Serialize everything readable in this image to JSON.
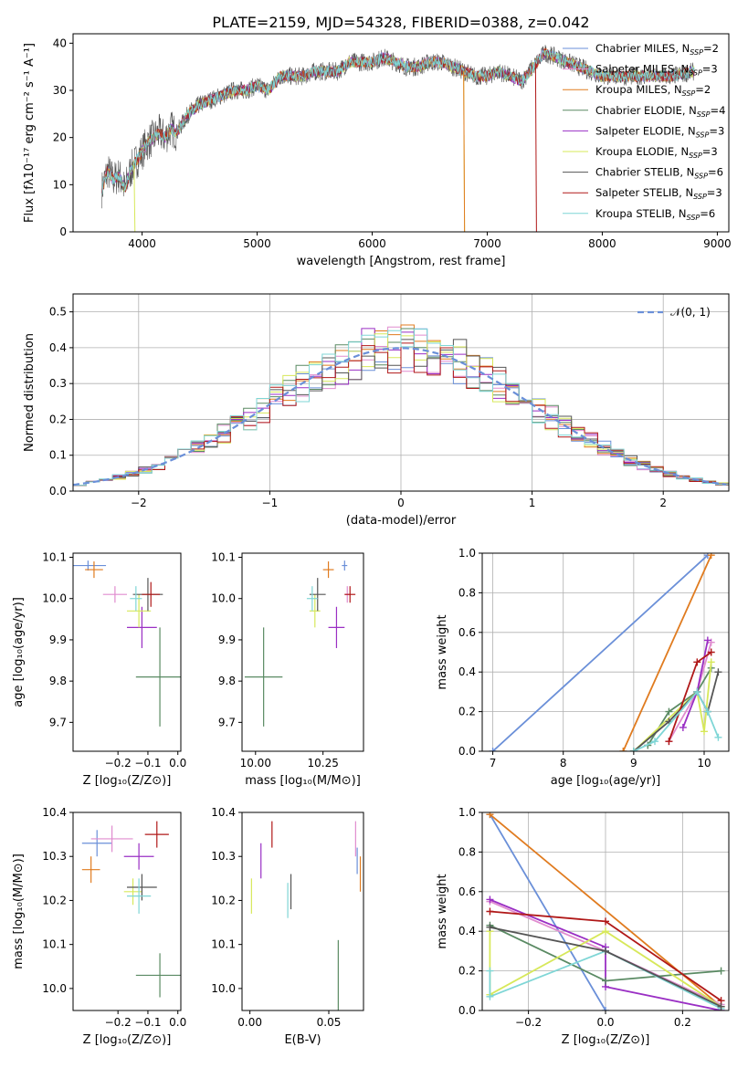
{
  "page_title": "PLATE=2159, MJD=54328, FIBERID=0388, z=0.042",
  "colors": {
    "Chabrier MILES": "#6a8fd8",
    "Salpeter MILES": "#e08ccf",
    "Kroupa MILES": "#e07b1f",
    "Chabrier ELODIE": "#5a8a63",
    "Salpeter ELODIE": "#9a2fc4",
    "Kroupa ELODIE": "#d7e85a",
    "Chabrier STELIB": "#555555",
    "Salpeter STELIB": "#b01818",
    "Kroupa STELIB": "#7fd6d6"
  },
  "chart_data": [
    {
      "id": "spectrum",
      "type": "line",
      "title": "PLATE=2159, MJD=54328, FIBERID=0388, z=0.042",
      "xlabel": "wavelength [Angstrom, rest frame]",
      "ylabel": "Flux [fλ10⁻¹⁷ erg cm⁻² s⁻¹ A⁻¹]",
      "xlim": [
        3400,
        9100
      ],
      "ylim": [
        0,
        42
      ],
      "xticks": [
        4000,
        5000,
        6000,
        7000,
        8000,
        9000
      ],
      "yticks": [
        0,
        10,
        20,
        30,
        40
      ],
      "legend_position": "top-right",
      "legend": [
        "Chabrier MILES, N_SSP=2",
        "Salpeter MILES, N_SSP=3",
        "Kroupa MILES, N_SSP=2",
        "Chabrier ELODIE, N_SSP=4",
        "Salpeter ELODIE, N_SSP=3",
        "Kroupa ELODIE, N_SSP=3",
        "Chabrier STELIB, N_SSP=6",
        "Salpeter STELIB, N_SSP=3",
        "Kroupa STELIB, N_SSP=6"
      ],
      "spectrum_x": [
        3650,
        3700,
        3750,
        3800,
        3850,
        3900,
        3950,
        4000,
        4050,
        4100,
        4150,
        4200,
        4250,
        4300,
        4350,
        4400,
        4450,
        4500,
        4600,
        4700,
        4800,
        4900,
        5000,
        5100,
        5200,
        5300,
        5400,
        5500,
        5600,
        5700,
        5800,
        5900,
        6000,
        6100,
        6200,
        6300,
        6400,
        6500,
        6600,
        6700,
        6800,
        6900,
        7000,
        7100,
        7200,
        7300,
        7400,
        7500,
        7600,
        7800,
        8000,
        8200,
        8400,
        8600,
        8800
      ],
      "spectrum_y": [
        9,
        13,
        11,
        12,
        9,
        13,
        15,
        17,
        19,
        20,
        21,
        20,
        22,
        21,
        23,
        25,
        26,
        27,
        28,
        29,
        30,
        30,
        31,
        30,
        33,
        33,
        33,
        34,
        34,
        34,
        36,
        36,
        36,
        37,
        36,
        35,
        35,
        36,
        36,
        35,
        34,
        33,
        33,
        34,
        33,
        32,
        35,
        38,
        37,
        35,
        33,
        33,
        33,
        33,
        34
      ]
    },
    {
      "id": "residuals",
      "type": "histogram",
      "xlabel": "(data-model)/error",
      "ylabel": "Normed distribution",
      "xlim": [
        -2.5,
        2.5
      ],
      "ylim": [
        0,
        0.55
      ],
      "xticks": [
        -2,
        -1,
        0,
        1,
        2
      ],
      "yticks": [
        0.0,
        0.1,
        0.2,
        0.3,
        0.4,
        0.5
      ],
      "grid": true,
      "legend_position": "top-right",
      "legend": [
        "𝒩(0, 1)"
      ],
      "gaussian": {
        "mean": 0,
        "sigma": 1
      }
    },
    {
      "id": "age-vs-Z",
      "type": "errorbar",
      "xlabel": "Z [log₁₀(Z/Z⊙)]",
      "ylabel": "age  [log₁₀(age/yr)]",
      "xlim": [
        -0.35,
        0.01
      ],
      "ylim": [
        9.63,
        10.11
      ],
      "xticks": [
        -0.2,
        -0.1,
        0.0
      ],
      "yticks": [
        9.7,
        9.8,
        9.9,
        10.0,
        10.1
      ],
      "points": [
        {
          "model": "Chabrier MILES",
          "x": -0.3,
          "y": 10.08,
          "xerr": 0.06,
          "yerr": 0.012
        },
        {
          "model": "Salpeter MILES",
          "x": -0.21,
          "y": 10.01,
          "xerr": 0.04,
          "yerr": 0.02
        },
        {
          "model": "Kroupa MILES",
          "x": -0.28,
          "y": 10.07,
          "xerr": 0.03,
          "yerr": 0.02
        },
        {
          "model": "Chabrier ELODIE",
          "x": -0.06,
          "y": 9.81,
          "xerr": 0.08,
          "yerr": 0.12
        },
        {
          "model": "Salpeter ELODIE",
          "x": -0.12,
          "y": 9.93,
          "xerr": 0.05,
          "yerr": 0.05
        },
        {
          "model": "Kroupa ELODIE",
          "x": -0.13,
          "y": 9.97,
          "xerr": 0.04,
          "yerr": 0.04
        },
        {
          "model": "Chabrier STELIB",
          "x": -0.1,
          "y": 10.01,
          "xerr": 0.05,
          "yerr": 0.04
        },
        {
          "model": "Salpeter STELIB",
          "x": -0.09,
          "y": 10.01,
          "xerr": 0.03,
          "yerr": 0.03
        },
        {
          "model": "Kroupa STELIB",
          "x": -0.14,
          "y": 10.0,
          "xerr": 0.02,
          "yerr": 0.03
        }
      ]
    },
    {
      "id": "age-vs-mass",
      "type": "errorbar",
      "xlabel": "mass [log₁₀(M/M⊙)]",
      "ylabel": "",
      "xlim": [
        9.95,
        10.4
      ],
      "ylim": [
        9.63,
        10.11
      ],
      "xticks": [
        10.0,
        10.25
      ],
      "yticks": [
        9.7,
        9.8,
        9.9,
        10.0,
        10.1
      ],
      "points": [
        {
          "model": "Chabrier MILES",
          "x": 10.33,
          "y": 10.08,
          "xerr": 0.01,
          "yerr": 0.012
        },
        {
          "model": "Salpeter MILES",
          "x": 10.34,
          "y": 10.01,
          "xerr": 0.01,
          "yerr": 0.02
        },
        {
          "model": "Kroupa MILES",
          "x": 10.27,
          "y": 10.07,
          "xerr": 0.02,
          "yerr": 0.02
        },
        {
          "model": "Chabrier ELODIE",
          "x": 10.03,
          "y": 9.81,
          "xerr": 0.07,
          "yerr": 0.12
        },
        {
          "model": "Salpeter ELODIE",
          "x": 10.3,
          "y": 9.93,
          "xerr": 0.03,
          "yerr": 0.05
        },
        {
          "model": "Kroupa ELODIE",
          "x": 10.22,
          "y": 9.97,
          "xerr": 0.02,
          "yerr": 0.04
        },
        {
          "model": "Chabrier STELIB",
          "x": 10.23,
          "y": 10.01,
          "xerr": 0.03,
          "yerr": 0.04
        },
        {
          "model": "Salpeter STELIB",
          "x": 10.35,
          "y": 10.01,
          "xerr": 0.02,
          "yerr": 0.02
        },
        {
          "model": "Kroupa STELIB",
          "x": 10.21,
          "y": 10.0,
          "xerr": 0.02,
          "yerr": 0.03
        }
      ]
    },
    {
      "id": "weight-vs-age",
      "type": "line",
      "xlabel": "age  [log₁₀(age/yr)]",
      "ylabel": "mass weight",
      "xlim": [
        6.85,
        10.35
      ],
      "ylim": [
        0,
        1.0
      ],
      "xticks": [
        7,
        8,
        9,
        10
      ],
      "yticks": [
        0.0,
        0.2,
        0.4,
        0.6,
        0.8,
        1.0
      ],
      "grid": true,
      "series": [
        {
          "model": "Chabrier MILES",
          "x": [
            7.0,
            10.05
          ],
          "y": [
            0.0,
            0.99
          ]
        },
        {
          "model": "Kroupa MILES",
          "x": [
            8.85,
            10.1
          ],
          "y": [
            0.0,
            0.99
          ]
        },
        {
          "model": "Salpeter MILES",
          "x": [
            9.5,
            9.9,
            10.1
          ],
          "y": [
            0.05,
            0.3,
            0.55
          ]
        },
        {
          "model": "Chabrier ELODIE",
          "x": [
            9.2,
            9.5,
            9.9,
            10.1
          ],
          "y": [
            0.03,
            0.2,
            0.3,
            0.42
          ]
        },
        {
          "model": "Salpeter ELODIE",
          "x": [
            9.7,
            9.9,
            10.05
          ],
          "y": [
            0.12,
            0.3,
            0.56
          ]
        },
        {
          "model": "Kroupa ELODIE",
          "x": [
            9.0,
            9.9,
            10.0,
            10.1
          ],
          "y": [
            0.0,
            0.3,
            0.1,
            0.45
          ]
        },
        {
          "model": "Chabrier STELIB",
          "x": [
            9.0,
            9.5,
            9.9,
            10.05,
            10.2
          ],
          "y": [
            0.0,
            0.15,
            0.3,
            0.2,
            0.4
          ]
        },
        {
          "model": "Salpeter STELIB",
          "x": [
            9.5,
            9.9,
            10.1
          ],
          "y": [
            0.05,
            0.45,
            0.5
          ]
        },
        {
          "model": "Kroupa STELIB",
          "x": [
            9.0,
            9.3,
            9.9,
            10.05,
            10.2
          ],
          "y": [
            0.0,
            0.05,
            0.3,
            0.2,
            0.07
          ]
        }
      ]
    },
    {
      "id": "mass-vs-Z",
      "type": "errorbar",
      "xlabel": "Z [log₁₀(Z/Z⊙)]",
      "ylabel": "mass [log₁₀(M/M⊙)]",
      "xlim": [
        -0.35,
        0.01
      ],
      "ylim": [
        9.95,
        10.4
      ],
      "xticks": [
        -0.2,
        -0.1,
        0.0
      ],
      "yticks": [
        10.0,
        10.1,
        10.2,
        10.3,
        10.4
      ],
      "points": [
        {
          "model": "Chabrier MILES",
          "x": -0.27,
          "y": 10.33,
          "xerr": 0.05,
          "yerr": 0.03
        },
        {
          "model": "Salpeter MILES",
          "x": -0.22,
          "y": 10.34,
          "xerr": 0.07,
          "yerr": 0.03
        },
        {
          "model": "Kroupa MILES",
          "x": -0.29,
          "y": 10.27,
          "xerr": 0.03,
          "yerr": 0.03
        },
        {
          "model": "Chabrier ELODIE",
          "x": -0.06,
          "y": 10.03,
          "xerr": 0.08,
          "yerr": 0.05
        },
        {
          "model": "Salpeter ELODIE",
          "x": -0.13,
          "y": 10.3,
          "xerr": 0.05,
          "yerr": 0.03
        },
        {
          "model": "Kroupa ELODIE",
          "x": -0.15,
          "y": 10.22,
          "xerr": 0.03,
          "yerr": 0.03
        },
        {
          "model": "Chabrier STELIB",
          "x": -0.12,
          "y": 10.23,
          "xerr": 0.05,
          "yerr": 0.03
        },
        {
          "model": "Salpeter STELIB",
          "x": -0.07,
          "y": 10.35,
          "xerr": 0.04,
          "yerr": 0.03
        },
        {
          "model": "Kroupa STELIB",
          "x": -0.13,
          "y": 10.21,
          "xerr": 0.04,
          "yerr": 0.04
        }
      ]
    },
    {
      "id": "mass-vs-ebv",
      "type": "errorbar",
      "xlabel": "E(B-V)",
      "ylabel": "",
      "xlim": [
        -0.005,
        0.072
      ],
      "ylim": [
        9.95,
        10.4
      ],
      "xticks": [
        0.0,
        0.05
      ],
      "yticks": [
        10.0,
        10.1,
        10.2,
        10.3,
        10.4
      ],
      "points": [
        {
          "model": "Chabrier MILES",
          "x": 0.068,
          "y": 10.29,
          "xerr": 0.0,
          "yerr": 0.03
        },
        {
          "model": "Salpeter MILES",
          "x": 0.067,
          "y": 10.34,
          "xerr": 0.0,
          "yerr": 0.04
        },
        {
          "model": "Kroupa MILES",
          "x": 0.07,
          "y": 10.26,
          "xerr": 0.0,
          "yerr": 0.04
        },
        {
          "model": "Chabrier ELODIE",
          "x": 0.056,
          "y": 10.03,
          "xerr": 0.0,
          "yerr": 0.08
        },
        {
          "model": "Salpeter ELODIE",
          "x": 0.007,
          "y": 10.29,
          "xerr": 0.0,
          "yerr": 0.04
        },
        {
          "model": "Kroupa ELODIE",
          "x": 0.001,
          "y": 10.21,
          "xerr": 0.0,
          "yerr": 0.04
        },
        {
          "model": "Chabrier STELIB",
          "x": 0.026,
          "y": 10.22,
          "xerr": 0.0,
          "yerr": 0.04
        },
        {
          "model": "Salpeter STELIB",
          "x": 0.014,
          "y": 10.35,
          "xerr": 0.0,
          "yerr": 0.03
        },
        {
          "model": "Kroupa STELIB",
          "x": 0.024,
          "y": 10.2,
          "xerr": 0.0,
          "yerr": 0.04
        }
      ]
    },
    {
      "id": "weight-vs-Z",
      "type": "line",
      "xlabel": "Z [log₁₀(Z/Z⊙)]",
      "ylabel": "mass weight",
      "xlim": [
        -0.32,
        0.32
      ],
      "ylim": [
        0,
        1.0
      ],
      "xticks": [
        -0.2,
        0.0,
        0.2
      ],
      "yticks": [
        0.0,
        0.2,
        0.4,
        0.6,
        0.8,
        1.0
      ],
      "grid": true,
      "series": [
        {
          "model": "Chabrier MILES",
          "x": [
            -0.3,
            0.0
          ],
          "y": [
            0.99,
            0.0
          ]
        },
        {
          "model": "Kroupa MILES",
          "x": [
            -0.3,
            0.3
          ],
          "y": [
            0.99,
            0.02
          ]
        },
        {
          "model": "Salpeter MILES",
          "x": [
            -0.3,
            0.0,
            0.3
          ],
          "y": [
            0.55,
            0.3,
            0.03
          ]
        },
        {
          "model": "Salpeter ELODIE",
          "x": [
            -0.3,
            0.0,
            0.0,
            0.3
          ],
          "y": [
            0.56,
            0.32,
            0.12,
            0.0
          ]
        },
        {
          "model": "Chabrier ELODIE",
          "x": [
            -0.3,
            0.0,
            0.3
          ],
          "y": [
            0.43,
            0.15,
            0.2
          ]
        },
        {
          "model": "Kroupa ELODIE",
          "x": [
            -0.3,
            -0.3,
            0.0,
            0.3
          ],
          "y": [
            0.4,
            0.08,
            0.4,
            0.02
          ]
        },
        {
          "model": "Salpeter STELIB",
          "x": [
            -0.3,
            0.0,
            0.3
          ],
          "y": [
            0.5,
            0.45,
            0.05
          ]
        },
        {
          "model": "Kroupa STELIB",
          "x": [
            -0.3,
            -0.3,
            0.0,
            0.3
          ],
          "y": [
            0.2,
            0.07,
            0.3,
            0.01
          ]
        },
        {
          "model": "Chabrier STELIB",
          "x": [
            -0.3,
            0.0,
            0.3
          ],
          "y": [
            0.42,
            0.3,
            0.02
          ]
        }
      ]
    }
  ]
}
